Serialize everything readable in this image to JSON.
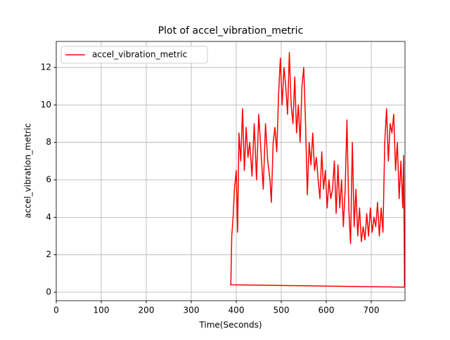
{
  "chart_data": {
    "type": "line",
    "title": "Plot of accel_vibration_metric",
    "x_label": "Time(Seconds)",
    "y_label": "accel_vibration_metric",
    "x": [
      774,
      387,
      388,
      390,
      393,
      396,
      400,
      403,
      406,
      410,
      414,
      418,
      422,
      426,
      430,
      435,
      440,
      445,
      450,
      455,
      460,
      465,
      470,
      475,
      478,
      482,
      486,
      490,
      494,
      498,
      502,
      506,
      510,
      514,
      518,
      522,
      526,
      530,
      534,
      538,
      542,
      546,
      550,
      554,
      558,
      562,
      566,
      570,
      574,
      578,
      582,
      586,
      590,
      594,
      598,
      602,
      606,
      610,
      614,
      618,
      622,
      626,
      630,
      634,
      638,
      642,
      646,
      650,
      654,
      658,
      662,
      666,
      670,
      674,
      678,
      682,
      686,
      690,
      694,
      698,
      702,
      706,
      710,
      714,
      718,
      722,
      726,
      730,
      734,
      738,
      742,
      746,
      750,
      754,
      758,
      762,
      766,
      770,
      772,
      774
    ],
    "series": [
      {
        "name": "accel_vibration_metric",
        "color": "#ff0000",
        "values": [
          0.27,
          0.4,
          0.4,
          3.0,
          4.0,
          5.5,
          6.5,
          3.2,
          8.5,
          7.0,
          9.8,
          6.5,
          8.8,
          7.2,
          8.0,
          6.2,
          9.0,
          6.0,
          9.5,
          7.5,
          5.5,
          9.0,
          7.0,
          6.0,
          4.8,
          8.0,
          8.8,
          7.5,
          10.5,
          12.5,
          10.0,
          12.0,
          11.0,
          9.5,
          12.8,
          10.0,
          9.0,
          11.5,
          8.5,
          10.0,
          8.0,
          11.0,
          12.0,
          9.0,
          5.2,
          8.0,
          6.8,
          8.5,
          6.5,
          7.2,
          6.0,
          5.0,
          7.5,
          5.5,
          6.5,
          4.5,
          6.0,
          5.0,
          5.5,
          7.0,
          4.2,
          6.8,
          4.5,
          6.0,
          3.5,
          5.5,
          9.2,
          4.5,
          2.6,
          8.0,
          3.5,
          5.5,
          3.0,
          4.5,
          2.7,
          3.5,
          2.8,
          4.2,
          3.0,
          4.5,
          3.2,
          4.0,
          3.5,
          4.8,
          3.0,
          4.5,
          3.2,
          8.0,
          9.8,
          7.0,
          9.0,
          8.5,
          9.5,
          6.5,
          8.0,
          5.0,
          7.0,
          4.5,
          7.3,
          0.3
        ]
      }
    ],
    "xlim": [
      0,
      775
    ],
    "ylim": [
      -0.45,
      13.39
    ],
    "xticks": [
      0,
      100,
      200,
      300,
      400,
      500,
      600,
      700
    ],
    "yticks": [
      0,
      2,
      4,
      6,
      8,
      10,
      12
    ],
    "grid": true,
    "legend": "upper-left"
  }
}
